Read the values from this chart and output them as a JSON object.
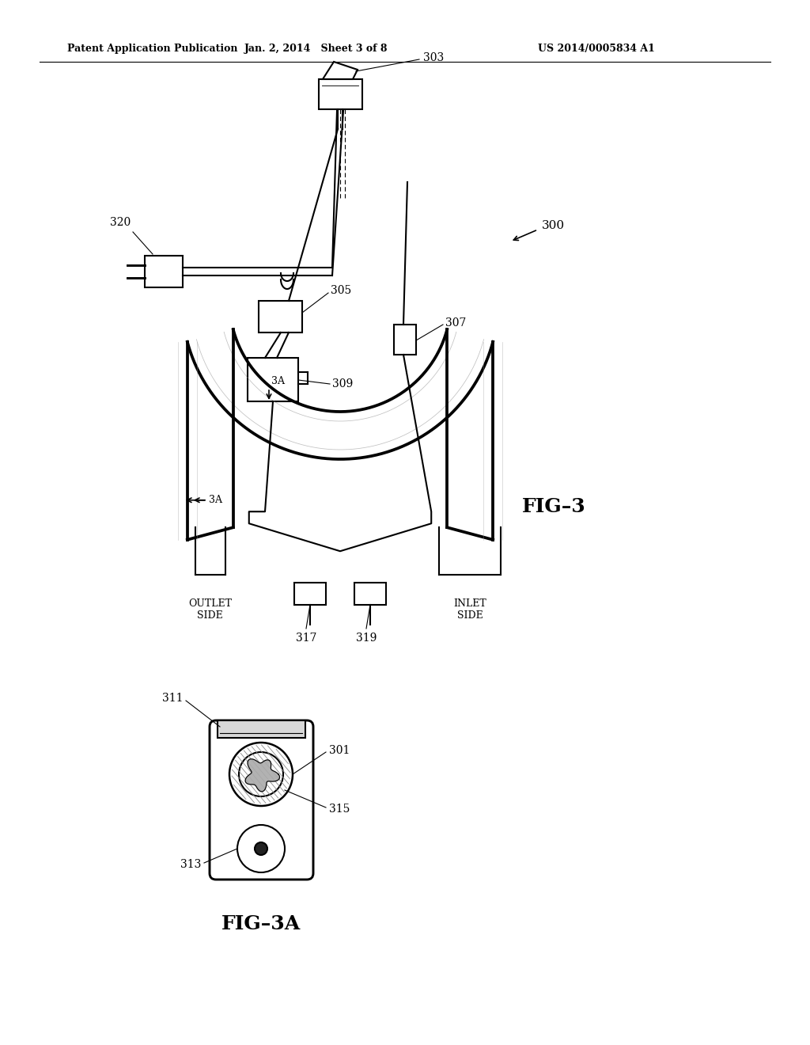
{
  "background_color": "#ffffff",
  "header_left": "Patent Application Publication",
  "header_center": "Jan. 2, 2014   Sheet 3 of 8",
  "header_right": "US 2014/0005834 A1",
  "fig3_label": "FIG–3",
  "fig3a_label": "FIG–3A",
  "ref_300": "300",
  "ref_303": "303",
  "ref_305": "305",
  "ref_307": "307",
  "ref_309": "309",
  "ref_317": "317",
  "ref_319": "319",
  "ref_320": "320",
  "ref_3A_top": "3A",
  "ref_3A_left": "3A",
  "outlet_side": "OUTLET\nSIDE",
  "inlet_side": "INLET\nSIDE",
  "ref_311": "311",
  "ref_301": "301",
  "ref_313": "313",
  "ref_315": "315",
  "line_color": "#000000",
  "line_width": 1.5,
  "thin_line": 0.8
}
